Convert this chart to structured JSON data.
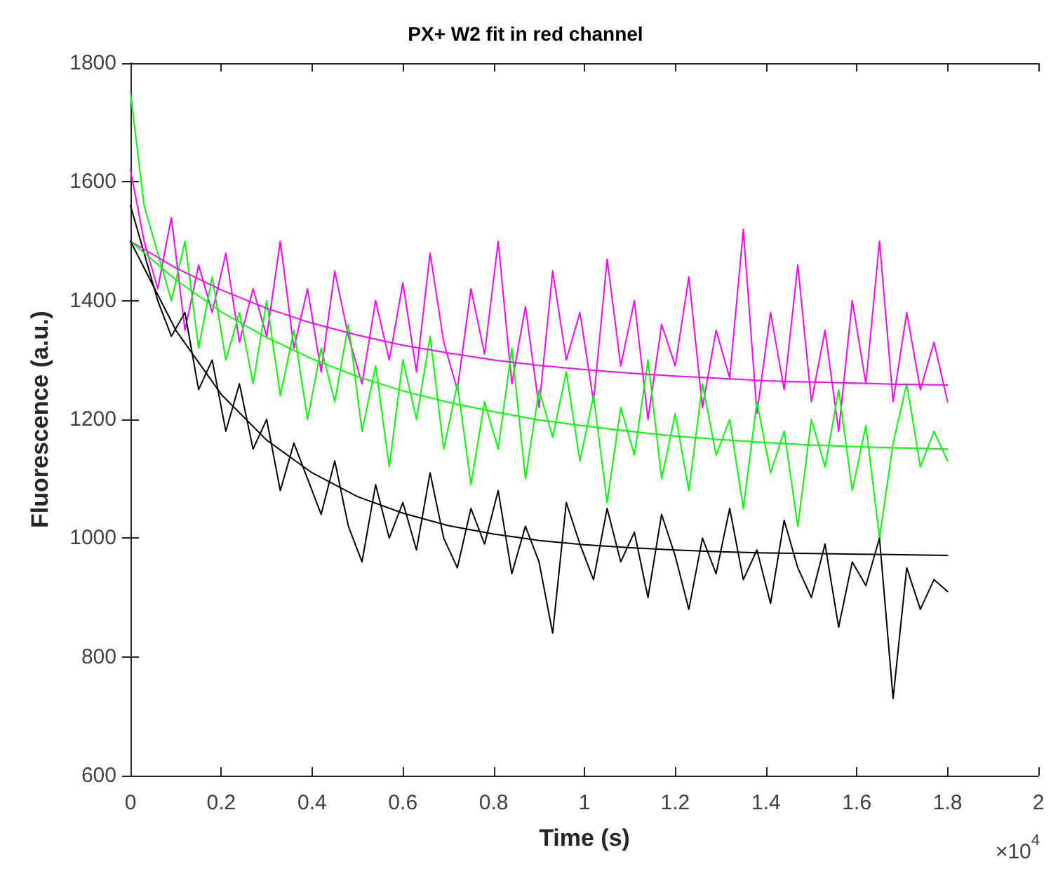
{
  "chart_data": {
    "type": "line",
    "title": "PX+ W2 fit in red channel",
    "xlabel": "Time (s)",
    "ylabel": "Fluorescence (a.u.)",
    "annotations": [
      "×10$^{4}$"
    ],
    "x": [
      0,
      0.03,
      0.06,
      0.09,
      0.12,
      0.15,
      0.18,
      0.21,
      0.24,
      0.27,
      0.3,
      0.33,
      0.36,
      0.39,
      0.42,
      0.45,
      0.48,
      0.51,
      0.54,
      0.57,
      0.6,
      0.63,
      0.66,
      0.69,
      0.72,
      0.75,
      0.78,
      0.81,
      0.84,
      0.87,
      0.9,
      0.93,
      0.96,
      0.99,
      1.02,
      1.05,
      1.08,
      1.11,
      1.14,
      1.17,
      1.2,
      1.23,
      1.26,
      1.29,
      1.32,
      1.35,
      1.38,
      1.41,
      1.44,
      1.47,
      1.5,
      1.53,
      1.56,
      1.59,
      1.62,
      1.65,
      1.68,
      1.71,
      1.74,
      1.77,
      1.8
    ],
    "series": [
      {
        "color": "#ff00ff",
        "values": [
          1620,
          1500,
          1420,
          1540,
          1350,
          1460,
          1380,
          1480,
          1330,
          1420,
          1340,
          1500,
          1320,
          1420,
          1280,
          1450,
          1340,
          1260,
          1400,
          1300,
          1430,
          1280,
          1480,
          1330,
          1250,
          1420,
          1310,
          1500,
          1260,
          1390,
          1220,
          1450,
          1300,
          1380,
          1230,
          1470,
          1290,
          1400,
          1200,
          1360,
          1290,
          1440,
          1220,
          1350,
          1270,
          1520,
          1210,
          1380,
          1250,
          1460,
          1230,
          1350,
          1180,
          1400,
          1260,
          1500,
          1230,
          1380,
          1250,
          1330,
          1230
        ]
      },
      {
        "color": "#00ff00",
        "values": [
          1750,
          1560,
          1480,
          1400,
          1500,
          1320,
          1440,
          1300,
          1380,
          1260,
          1400,
          1240,
          1350,
          1200,
          1320,
          1230,
          1360,
          1180,
          1290,
          1120,
          1300,
          1200,
          1340,
          1150,
          1260,
          1090,
          1230,
          1150,
          1320,
          1100,
          1250,
          1170,
          1280,
          1130,
          1240,
          1060,
          1220,
          1140,
          1300,
          1100,
          1210,
          1080,
          1260,
          1140,
          1200,
          1050,
          1230,
          1110,
          1180,
          1020,
          1200,
          1120,
          1250,
          1080,
          1190,
          1000,
          1160,
          1260,
          1120,
          1180,
          1130
        ]
      },
      {
        "color": "#000000",
        "values": [
          1560,
          1480,
          1400,
          1340,
          1380,
          1250,
          1300,
          1180,
          1260,
          1150,
          1200,
          1080,
          1160,
          1100,
          1040,
          1130,
          1020,
          960,
          1090,
          1000,
          1060,
          980,
          1110,
          1000,
          950,
          1050,
          990,
          1080,
          940,
          1020,
          960,
          840,
          1060,
          990,
          930,
          1050,
          960,
          1010,
          900,
          1040,
          970,
          880,
          1000,
          940,
          1050,
          930,
          980,
          890,
          1030,
          950,
          900,
          990,
          850,
          960,
          920,
          1000,
          730,
          950,
          880,
          930,
          910
        ]
      },
      {
        "color": "#ff00ff",
        "x": [
          0,
          0.1,
          0.2,
          0.3,
          0.4,
          0.5,
          0.6,
          0.7,
          0.8,
          0.9,
          1,
          1.1,
          1.2,
          1.3,
          1.4,
          1.5,
          1.6,
          1.7,
          1.8
        ],
        "values": [
          1500,
          1455,
          1418,
          1387,
          1362,
          1342,
          1325,
          1312,
          1300,
          1291,
          1284,
          1278,
          1273,
          1269,
          1265,
          1263,
          1261,
          1259,
          1258
        ]
      },
      {
        "color": "#00ff00",
        "x": [
          0,
          0.1,
          0.2,
          0.3,
          0.4,
          0.5,
          0.6,
          0.7,
          0.8,
          0.9,
          1,
          1.1,
          1.2,
          1.3,
          1.4,
          1.5,
          1.6,
          1.7,
          1.8
        ],
        "values": [
          1500,
          1435,
          1381,
          1338,
          1302,
          1272,
          1248,
          1229,
          1213,
          1199,
          1189,
          1180,
          1172,
          1166,
          1161,
          1157,
          1154,
          1152,
          1150
        ]
      },
      {
        "color": "#000000",
        "x": [
          0,
          0.1,
          0.2,
          0.3,
          0.4,
          0.5,
          0.6,
          0.7,
          0.8,
          0.9,
          1,
          1.1,
          1.2,
          1.3,
          1.4,
          1.5,
          1.6,
          1.7,
          1.8
        ],
        "values": [
          1500,
          1350,
          1242,
          1165,
          1110,
          1070,
          1042,
          1021,
          1007,
          996,
          989,
          984,
          980,
          977,
          975,
          974,
          973,
          972,
          971
        ]
      }
    ],
    "xlim": [
      0,
      2
    ],
    "xticks": [
      0,
      0.2,
      0.4,
      0.6,
      0.8,
      1,
      1.2,
      1.4,
      1.6,
      1.8,
      2
    ],
    "ylim": [
      600,
      1800
    ],
    "yticks": [
      600,
      800,
      1000,
      1200,
      1400,
      1600,
      1800
    ],
    "grid": false
  }
}
